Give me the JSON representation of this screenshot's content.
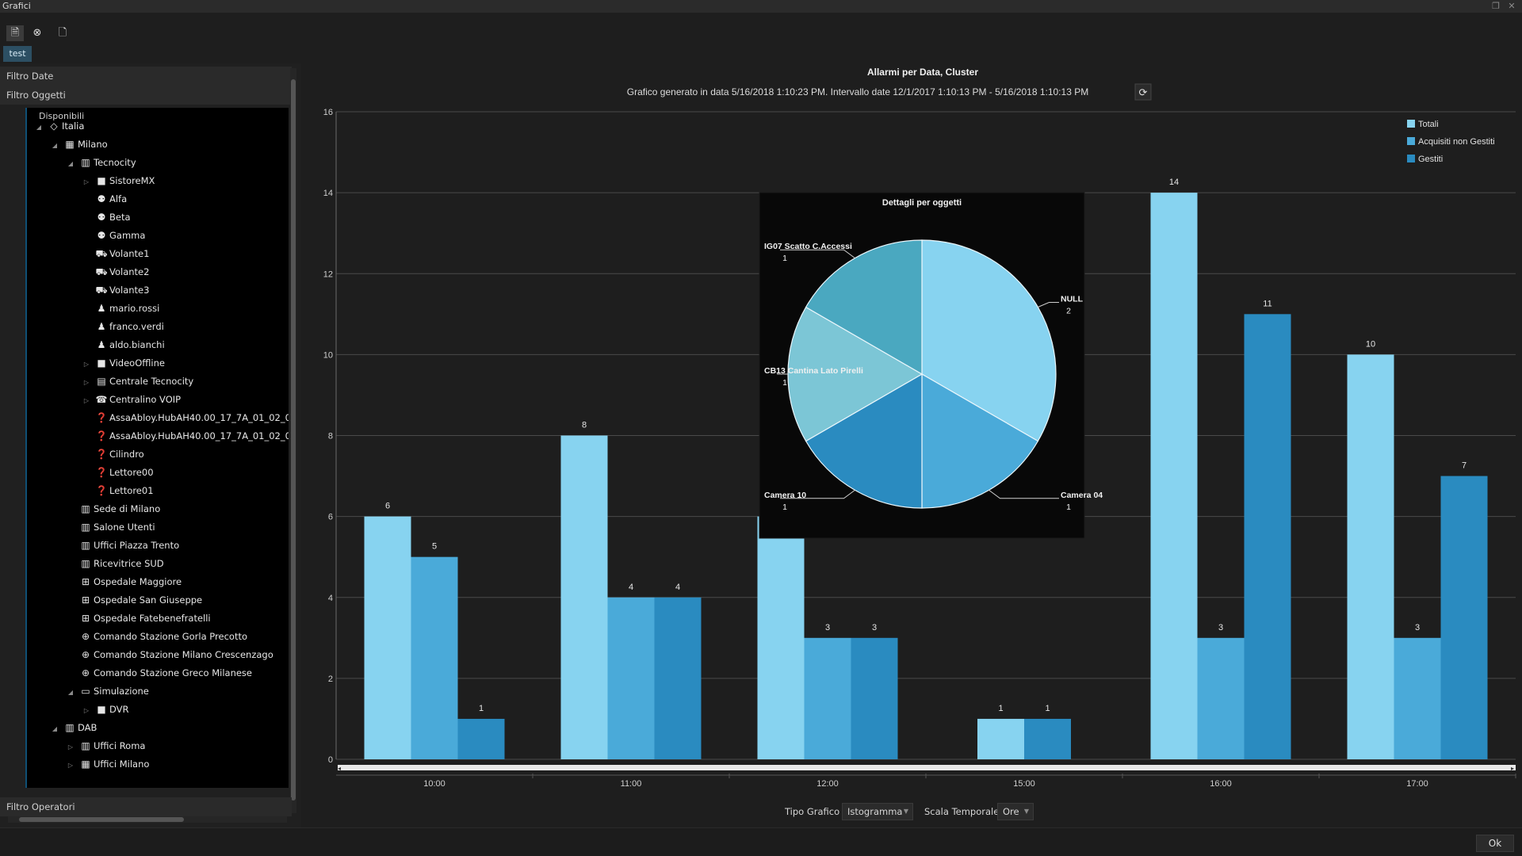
{
  "window": {
    "title": "Grafici"
  },
  "tabs": [
    {
      "label": "test"
    }
  ],
  "left": {
    "filter_date": "Filtro Date",
    "filter_objects": "Filtro Oggetti",
    "filter_operators": "Filtro Operatori",
    "tree_title": "Disponibili",
    "tree": [
      {
        "label": "Italia",
        "level": 0,
        "expanded": true,
        "icon": "map-pin"
      },
      {
        "label": "Milano",
        "level": 1,
        "expanded": true,
        "icon": "building"
      },
      {
        "label": "Tecnocity",
        "level": 2,
        "expanded": true,
        "icon": "factory"
      },
      {
        "label": "SistoreMX",
        "level": 3,
        "expanded": false,
        "icon": "camera"
      },
      {
        "label": "Alfa",
        "level": 3,
        "icon": "group"
      },
      {
        "label": "Beta",
        "level": 3,
        "icon": "group"
      },
      {
        "label": "Gamma",
        "level": 3,
        "icon": "group"
      },
      {
        "label": "Volante1",
        "level": 3,
        "icon": "car"
      },
      {
        "label": "Volante2",
        "level": 3,
        "icon": "car"
      },
      {
        "label": "Volante3",
        "level": 3,
        "icon": "car"
      },
      {
        "label": "mario.rossi",
        "level": 3,
        "icon": "user"
      },
      {
        "label": "franco.verdi",
        "level": 3,
        "icon": "user"
      },
      {
        "label": "aldo.bianchi",
        "level": 3,
        "icon": "user"
      },
      {
        "label": "VideoOffline",
        "level": 3,
        "expanded": false,
        "icon": "camera"
      },
      {
        "label": "Centrale Tecnocity",
        "level": 3,
        "expanded": false,
        "icon": "server"
      },
      {
        "label": "Centralino VOIP",
        "level": 3,
        "expanded": false,
        "icon": "phone"
      },
      {
        "label": "AssaAbloy.HubAH40.00_17_7A_01_02_0",
        "level": 3,
        "icon": "question"
      },
      {
        "label": "AssaAbloy.HubAH40.00_17_7A_01_02_0",
        "level": 3,
        "icon": "question"
      },
      {
        "label": "Cilindro",
        "level": 3,
        "icon": "question"
      },
      {
        "label": "Lettore00",
        "level": 3,
        "icon": "question"
      },
      {
        "label": "Lettore01",
        "level": 3,
        "icon": "question"
      },
      {
        "label": "Sede di Milano",
        "level": 2,
        "icon": "factory"
      },
      {
        "label": "Salone Utenti",
        "level": 2,
        "icon": "factory"
      },
      {
        "label": "Uffici Piazza Trento",
        "level": 2,
        "icon": "factory"
      },
      {
        "label": "Ricevitrice SUD",
        "level": 2,
        "icon": "factory"
      },
      {
        "label": "Ospedale Maggiore",
        "level": 2,
        "icon": "hospital"
      },
      {
        "label": "Ospedale San Giuseppe",
        "level": 2,
        "icon": "hospital"
      },
      {
        "label": "Ospedale Fatebenefratelli",
        "level": 2,
        "icon": "hospital"
      },
      {
        "label": "Comando Stazione Gorla Precotto",
        "level": 2,
        "icon": "shield"
      },
      {
        "label": "Comando Stazione Milano Crescenzago",
        "level": 2,
        "icon": "shield"
      },
      {
        "label": "Comando Stazione Greco Milanese",
        "level": 2,
        "icon": "shield"
      },
      {
        "label": "Simulazione",
        "level": 2,
        "expanded": true,
        "icon": "monitor"
      },
      {
        "label": "DVR",
        "level": 3,
        "expanded": false,
        "icon": "camera"
      },
      {
        "label": "DAB",
        "level": 1,
        "expanded": true,
        "icon": "factory"
      },
      {
        "label": "Uffici Roma",
        "level": 2,
        "expanded": false,
        "icon": "factory"
      },
      {
        "label": "Uffici Milano",
        "level": 2,
        "expanded": false,
        "icon": "building"
      }
    ]
  },
  "chart_header": {
    "title": "Allarmi per Data, Cluster",
    "subtitle": "Grafico generato in data 5/16/2018 1:10:23 PM. Intervallo date 12/1/2017 1:10:13 PM - 5/16/2018 1:10:13 PM"
  },
  "controls": {
    "chart_type_label": "Tipo Grafico",
    "chart_type_value": "Istogramma",
    "time_scale_label": "Scala Temporale",
    "time_scale_value": "Ore",
    "ok_label": "Ok"
  },
  "colors": {
    "totali": "#87d3f0",
    "acquisiti_non_gestiti": "#4aaad9",
    "gestiti": "#2a8bc0",
    "tab_accent": "#2c4f63"
  },
  "chart_data": [
    {
      "type": "bar",
      "title": "Allarmi per Data, Cluster",
      "categories": [
        "10:00",
        "11:00",
        "12:00",
        "15:00",
        "16:00",
        "17:00"
      ],
      "series": [
        {
          "name": "Totali",
          "values": [
            6,
            8,
            6,
            1,
            14,
            10
          ],
          "labels": [
            "6",
            "8",
            "",
            "1",
            "14",
            "10"
          ]
        },
        {
          "name": "Acquisiti non Gestiti",
          "values": [
            5,
            4,
            3,
            0,
            3,
            3
          ],
          "labels": [
            "5",
            "4",
            "3",
            "",
            "3",
            "3"
          ]
        },
        {
          "name": "Gestiti",
          "values": [
            1,
            4,
            3,
            1,
            11,
            7
          ],
          "labels": [
            "1",
            "4",
            "3",
            "1",
            "11",
            "7"
          ]
        }
      ],
      "ylim": [
        0,
        16
      ],
      "yticks": [
        "0",
        "2",
        "4",
        "6",
        "8",
        "10",
        "12",
        "14",
        "16"
      ],
      "grid": true,
      "legend": "top-right"
    },
    {
      "type": "pie",
      "title": "Dettagli per oggetti",
      "slices": [
        {
          "name": "NULL",
          "value": 2,
          "label": "NULL",
          "count": "2"
        },
        {
          "name": "Camera 04",
          "value": 1,
          "label": "Camera 04",
          "count": "1"
        },
        {
          "name": "Camera 10",
          "value": 1,
          "label": "Camera 10",
          "count": "1"
        },
        {
          "name": "CB13 Cantina Lato Pirelli",
          "value": 1,
          "label": "CB13 Cantina Lato Pirelli",
          "count": "1"
        },
        {
          "name": "IG07 Scatto C.Accessi",
          "value": 1,
          "label": "IG07 Scatto C.Accessi",
          "count": "1"
        }
      ],
      "colors": [
        "#87d3f0",
        "#4aaad9",
        "#2a8bc0",
        "#7cc6d6",
        "#4aa8c0"
      ]
    }
  ]
}
